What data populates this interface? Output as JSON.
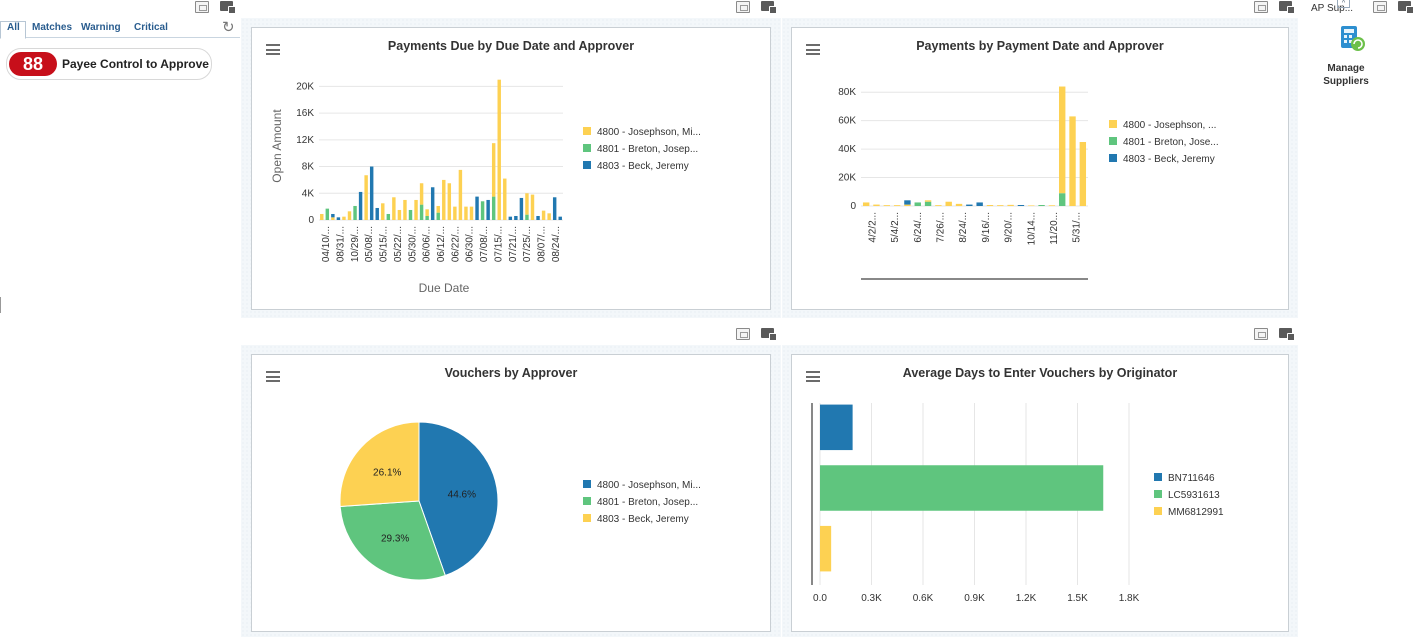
{
  "left_panel": {
    "tabs": [
      "All",
      "Matches",
      "Warning",
      "Critical"
    ],
    "alert": {
      "count": "88",
      "label": "Payee Control to Approve"
    }
  },
  "right_panel": {
    "title": "AP Sup...",
    "manage": {
      "line1": "Manage",
      "line2": "Suppliers"
    }
  },
  "colors": {
    "blue": "#2178b0",
    "green": "#5fc57e",
    "yellow": "#fdd152"
  },
  "chart_data": [
    {
      "type": "bar",
      "title": "Payments Due by Due Date and Approver",
      "xlabel": "Due Date",
      "ylabel": "Open Amount",
      "ylim": [
        0,
        22000
      ],
      "yticks": [
        {
          "v": 0,
          "t": "0"
        },
        {
          "v": 4000,
          "t": "4K"
        },
        {
          "v": 8000,
          "t": "8K"
        },
        {
          "v": 12000,
          "t": "12K"
        },
        {
          "v": 16000,
          "t": "16K"
        },
        {
          "v": 20000,
          "t": "20K"
        }
      ],
      "categories": [
        "04/10/...",
        "08/31/...",
        "10/29/...",
        "05/08/...",
        "05/15/...",
        "05/22/...",
        "05/30/...",
        "06/06/...",
        "06/12/...",
        "06/22/...",
        "06/30/...",
        "07/08/...",
        "07/15/...",
        "07/21/...",
        "07/25/...",
        "08/07/...",
        "08/24/..."
      ],
      "legend": [
        "4800 - Josephson, Mi...",
        "4801 - Breton, Josep...",
        "4803 - Beck, Jeremy"
      ],
      "bars": [
        {
          "blue": 0,
          "green": 0,
          "yellow": 900
        },
        {
          "blue": 0,
          "green": 1700,
          "yellow": 0
        },
        {
          "blue": 500,
          "green": 0,
          "yellow": 400
        },
        {
          "blue": 400,
          "green": 0,
          "yellow": 0
        },
        {
          "blue": 0,
          "green": 0,
          "yellow": 500
        },
        {
          "blue": 0,
          "green": 0,
          "yellow": 1300
        },
        {
          "blue": 0,
          "green": 2100,
          "yellow": 0
        },
        {
          "blue": 4200,
          "green": 0,
          "yellow": 0
        },
        {
          "blue": 0,
          "green": 0,
          "yellow": 6700
        },
        {
          "blue": 8000,
          "green": 0,
          "yellow": 0
        },
        {
          "blue": 1800,
          "green": 0,
          "yellow": 0
        },
        {
          "blue": 0,
          "green": 0,
          "yellow": 2500
        },
        {
          "blue": 0,
          "green": 900,
          "yellow": 0
        },
        {
          "blue": 0,
          "green": 0,
          "yellow": 3400
        },
        {
          "blue": 0,
          "green": 0,
          "yellow": 1500
        },
        {
          "blue": 0,
          "green": 0,
          "yellow": 3000
        },
        {
          "blue": 0,
          "green": 1500,
          "yellow": 0
        },
        {
          "blue": 0,
          "green": 0,
          "yellow": 3000
        },
        {
          "blue": 0,
          "green": 2300,
          "yellow": 3200
        },
        {
          "blue": 0,
          "green": 600,
          "yellow": 1000
        },
        {
          "blue": 4900,
          "green": 0,
          "yellow": 0
        },
        {
          "blue": 0,
          "green": 1100,
          "yellow": 1000
        },
        {
          "blue": 0,
          "green": 0,
          "yellow": 6000
        },
        {
          "blue": 0,
          "green": 0,
          "yellow": 5500
        },
        {
          "blue": 0,
          "green": 0,
          "yellow": 2000
        },
        {
          "blue": 0,
          "green": 0,
          "yellow": 7500
        },
        {
          "blue": 0,
          "green": 0,
          "yellow": 2000
        },
        {
          "blue": 0,
          "green": 0,
          "yellow": 2000
        },
        {
          "blue": 3500,
          "green": 0,
          "yellow": 0
        },
        {
          "blue": 0,
          "green": 2800,
          "yellow": 0
        },
        {
          "blue": 3000,
          "green": 0,
          "yellow": 0
        },
        {
          "blue": 0,
          "green": 3500,
          "yellow": 8000
        },
        {
          "blue": 0,
          "green": 0,
          "yellow": 21000
        },
        {
          "blue": 0,
          "green": 0,
          "yellow": 6200
        },
        {
          "blue": 500,
          "green": 0,
          "yellow": 0
        },
        {
          "blue": 600,
          "green": 0,
          "yellow": 0
        },
        {
          "blue": 3300,
          "green": 0,
          "yellow": 0
        },
        {
          "blue": 0,
          "green": 800,
          "yellow": 3200
        },
        {
          "blue": 0,
          "green": 0,
          "yellow": 3800
        },
        {
          "blue": 600,
          "green": 0,
          "yellow": 0
        },
        {
          "blue": 0,
          "green": 0,
          "yellow": 1400
        },
        {
          "blue": 0,
          "green": 0,
          "yellow": 1000
        },
        {
          "blue": 3400,
          "green": 0,
          "yellow": 0
        },
        {
          "blue": 500,
          "green": 0,
          "yellow": 0
        }
      ]
    },
    {
      "type": "bar",
      "title": "Payments by Payment Date and Approver",
      "ylim": [
        0,
        90000
      ],
      "yticks": [
        {
          "v": 0,
          "t": "0"
        },
        {
          "v": 20000,
          "t": "20K"
        },
        {
          "v": 40000,
          "t": "40K"
        },
        {
          "v": 60000,
          "t": "60K"
        },
        {
          "v": 80000,
          "t": "80K"
        }
      ],
      "categories": [
        "4/2/2...",
        "5/4/2...",
        "6/24/...",
        "7/26/...",
        "8/24/...",
        "9/16/...",
        "9/20/...",
        "10/14...",
        "11/20...",
        "5/31/..."
      ],
      "legend": [
        "4800 - Josephson, ...",
        "4801 - Breton, Jose...",
        "4803 - Beck, Jeremy"
      ],
      "bars": [
        {
          "blue": 0,
          "green": 0,
          "yellow": 2500
        },
        {
          "blue": 0,
          "green": 0,
          "yellow": 1000
        },
        {
          "blue": 0,
          "green": 0,
          "yellow": 600
        },
        {
          "blue": 0,
          "green": 0,
          "yellow": 600
        },
        {
          "blue": 3000,
          "green": 0,
          "yellow": 1000
        },
        {
          "blue": 0,
          "green": 2500,
          "yellow": 0
        },
        {
          "blue": 0,
          "green": 3000,
          "yellow": 1000
        },
        {
          "blue": 0,
          "green": 0,
          "yellow": 600
        },
        {
          "blue": 0,
          "green": 0,
          "yellow": 3000
        },
        {
          "blue": 0,
          "green": 0,
          "yellow": 1500
        },
        {
          "blue": 1000,
          "green": 0,
          "yellow": 0
        },
        {
          "blue": 2500,
          "green": 0,
          "yellow": 0
        },
        {
          "blue": 0,
          "green": 0,
          "yellow": 700
        },
        {
          "blue": 0,
          "green": 0,
          "yellow": 600
        },
        {
          "blue": 0,
          "green": 0,
          "yellow": 800
        },
        {
          "blue": 700,
          "green": 0,
          "yellow": 0
        },
        {
          "blue": 0,
          "green": 0,
          "yellow": 400
        },
        {
          "blue": 0,
          "green": 700,
          "yellow": 0
        },
        {
          "blue": 0,
          "green": 0,
          "yellow": 500
        },
        {
          "blue": 0,
          "green": 9000,
          "yellow": 75000
        },
        {
          "blue": 0,
          "green": 0,
          "yellow": 63000
        },
        {
          "blue": 0,
          "green": 0,
          "yellow": 45000
        }
      ]
    },
    {
      "type": "pie",
      "title": "Vouchers by Approver",
      "legend": [
        "4800 - Josephson, Mi...",
        "4801 - Breton, Josep...",
        "4803 - Beck, Jeremy"
      ],
      "slices": [
        {
          "label": "44.6%",
          "value": 44.6,
          "color": "blue"
        },
        {
          "label": "29.3%",
          "value": 29.3,
          "color": "green"
        },
        {
          "label": "26.1%",
          "value": 26.1,
          "color": "yellow"
        }
      ]
    },
    {
      "type": "bar",
      "orientation": "horizontal",
      "title": "Average Days to Enter Vouchers by Originator",
      "xlim": [
        0,
        1800
      ],
      "xticks": [
        {
          "v": 0,
          "t": "0.0"
        },
        {
          "v": 300,
          "t": "0.3K"
        },
        {
          "v": 600,
          "t": "0.6K"
        },
        {
          "v": 900,
          "t": "0.9K"
        },
        {
          "v": 1200,
          "t": "1.2K"
        },
        {
          "v": 1500,
          "t": "1.5K"
        },
        {
          "v": 1800,
          "t": "1.8K"
        }
      ],
      "categories": [
        "BN711646",
        "LC5931613",
        "MM6812991"
      ],
      "values": [
        190,
        1650,
        65
      ],
      "colors": [
        "blue",
        "green",
        "yellow"
      ]
    }
  ]
}
